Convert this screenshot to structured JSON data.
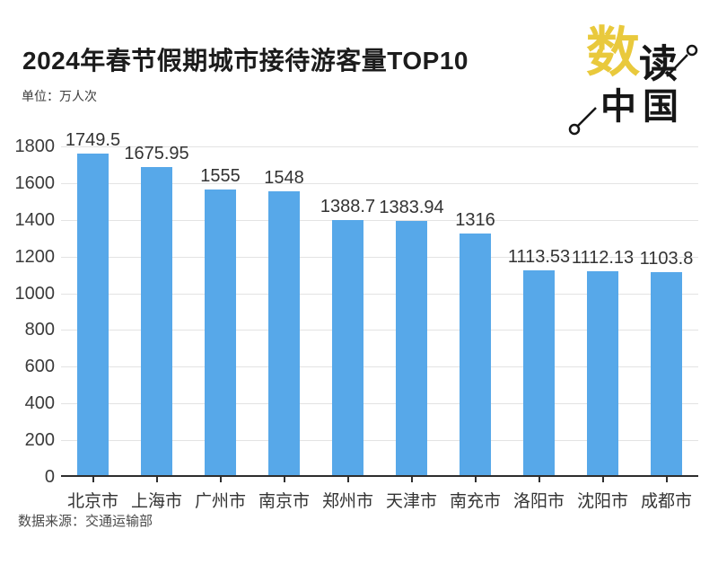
{
  "page": {
    "title": "2024年春节假期城市接待游客量TOP10",
    "unit_label": "单位：万人次",
    "source": "数据来源：交通运输部"
  },
  "logo": {
    "char_main": "数",
    "char_sub": "读",
    "chars_bottom": "中国",
    "accent_color": "#E9C93C",
    "text_color": "#161616"
  },
  "chart_data": {
    "type": "bar",
    "title": "2024年春节假期城市接待游客量TOP10",
    "unit": "万人次",
    "categories": [
      "北京市",
      "上海市",
      "广州市",
      "南京市",
      "郑州市",
      "天津市",
      "南充市",
      "洛阳市",
      "沈阳市",
      "成都市"
    ],
    "values": [
      1749.5,
      1675.95,
      1555,
      1548,
      1388.7,
      1383.94,
      1316,
      1113.53,
      1112.13,
      1103.8
    ],
    "value_labels": [
      "1749.5",
      "1675.95",
      "1555",
      "1548",
      "1388.7",
      "1383.94",
      "1316",
      "1113.53",
      "1112.13",
      "1103.8"
    ],
    "xlabel": "",
    "ylabel": "",
    "ylim": [
      0,
      1800
    ],
    "yticks": [
      0,
      200,
      400,
      600,
      800,
      1000,
      1200,
      1400,
      1600,
      1800
    ],
    "grid": true,
    "legend": false,
    "bar_color": "#57A8E9",
    "grid_color": "#e3e3e3",
    "axis_color": "#2e2e2e",
    "label_color": "#333333"
  }
}
